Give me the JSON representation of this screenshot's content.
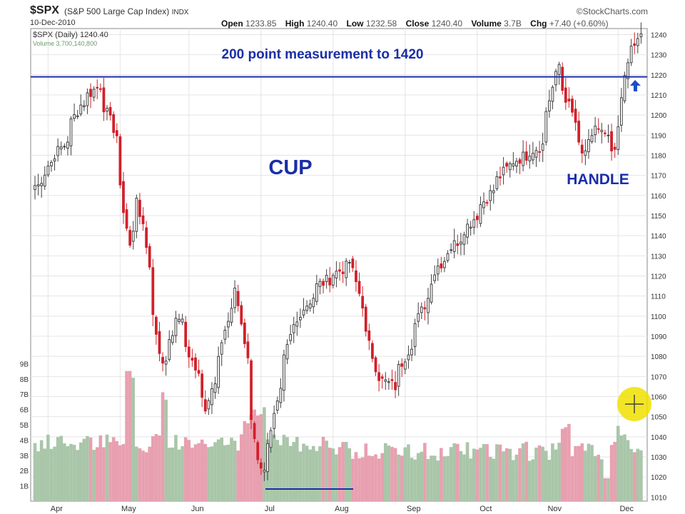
{
  "header": {
    "symbol": "$SPX",
    "name": "(S&P 500 Large Cap Index)",
    "exchange": "INDX",
    "date": "10-Dec-2010",
    "open_label": "Open",
    "open": "1233.85",
    "high_label": "High",
    "high": "1240.40",
    "low_label": "Low",
    "low": "1232.58",
    "close_label": "Close",
    "close": "1240.40",
    "volume_label": "Volume",
    "volume": "3.7B",
    "chg_label": "Chg",
    "chg": "+7.40 (+0.60%)",
    "brand": "©StockCharts.com",
    "legend_main": "$SPX (Daily) 1240.40",
    "legend_volume": "Volume 3,700,140,800"
  },
  "annotations": {
    "measurement": "200 point measurement to 1420",
    "cup": "CUP",
    "handle": "HANDLE"
  },
  "colors": {
    "up": "#404040",
    "down": "#d0202a",
    "vol_up": "#a9c6a9",
    "vol_down": "#e8a0b0",
    "annotation": "#1a2ea8",
    "grid": "#e4e4e4",
    "highlight": "#f0e000"
  },
  "chart_data": {
    "type": "candlestick",
    "x": [
      "Apr",
      "May",
      "Jun",
      "Jul",
      "Aug",
      "Sep",
      "Oct",
      "Nov",
      "Dec"
    ],
    "price_range": [
      1008,
      1243
    ],
    "price_ticks": [
      1010,
      1020,
      1030,
      1040,
      1050,
      1060,
      1070,
      1080,
      1090,
      1100,
      1110,
      1120,
      1130,
      1140,
      1150,
      1160,
      1170,
      1180,
      1190,
      1200,
      1210,
      1220,
      1230,
      1240
    ],
    "volume_ticks": [
      "1B",
      "2B",
      "3B",
      "4B",
      "5B",
      "6B",
      "7B",
      "8B",
      "9B"
    ],
    "close_path": [
      {
        "date": "Mar 29",
        "close": 1165
      },
      {
        "date": "Apr 1",
        "close": 1175
      },
      {
        "date": "Apr 8",
        "close": 1185
      },
      {
        "date": "Apr 15",
        "close": 1205
      },
      {
        "date": "Apr 23",
        "close": 1215
      },
      {
        "date": "Apr 30",
        "close": 1190
      },
      {
        "date": "May 6",
        "close": 1135
      },
      {
        "date": "May 10",
        "close": 1160
      },
      {
        "date": "May 20",
        "close": 1075
      },
      {
        "date": "May 27",
        "close": 1100
      },
      {
        "date": "Jun 8",
        "close": 1055
      },
      {
        "date": "Jun 21",
        "close": 1115
      },
      {
        "date": "Jun 30",
        "close": 1030
      },
      {
        "date": "Jul 2",
        "close": 1022
      },
      {
        "date": "Jul 15",
        "close": 1095
      },
      {
        "date": "Jul 26",
        "close": 1115
      },
      {
        "date": "Aug 9",
        "close": 1127
      },
      {
        "date": "Aug 20",
        "close": 1070
      },
      {
        "date": "Aug 27",
        "close": 1065
      },
      {
        "date": "Sep 1",
        "close": 1080
      },
      {
        "date": "Sep 15",
        "close": 1125
      },
      {
        "date": "Sep 28",
        "close": 1145
      },
      {
        "date": "Oct 15",
        "close": 1175
      },
      {
        "date": "Oct 29",
        "close": 1185
      },
      {
        "date": "Nov 5",
        "close": 1225
      },
      {
        "date": "Nov 16",
        "close": 1180
      },
      {
        "date": "Nov 22",
        "close": 1195
      },
      {
        "date": "Nov 30",
        "close": 1180
      },
      {
        "date": "Dec 3",
        "close": 1220
      },
      {
        "date": "Dec 10",
        "close": 1240
      }
    ],
    "horizontal_line": 1219
  }
}
